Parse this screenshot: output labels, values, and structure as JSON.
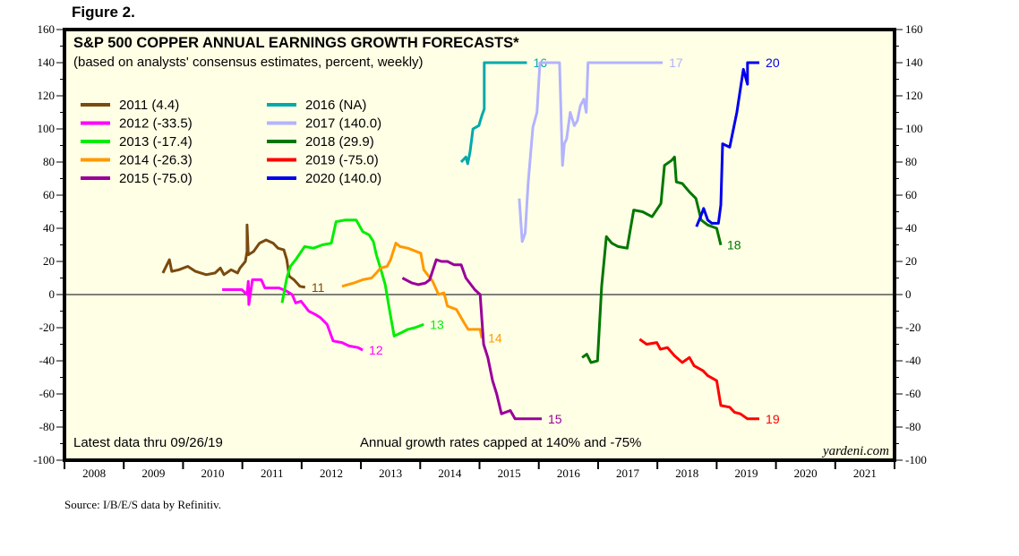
{
  "figure_label": "Figure 2.",
  "source": "Source: I/B/E/S data by Refinitiv.",
  "chart_data": {
    "type": "line",
    "title": "S&P 500 COPPER ANNUAL EARNINGS GROWTH FORECASTS*",
    "subtitle": "(based on analysts' consensus estimates, percent, weekly)",
    "xlabel": "",
    "ylabel": "",
    "xlim": [
      2008,
      2022
    ],
    "ylim": [
      -100,
      160
    ],
    "x_tick_labels": [
      "2008",
      "2009",
      "2010",
      "2011",
      "2012",
      "2013",
      "2014",
      "2015",
      "2016",
      "2017",
      "2018",
      "2019",
      "2020",
      "2021"
    ],
    "y_ticks": [
      -100,
      -80,
      -60,
      -40,
      -20,
      0,
      20,
      40,
      60,
      80,
      100,
      120,
      140,
      160
    ],
    "y_tick_labels": [
      "-100",
      "-80",
      "-60",
      "-40",
      "-20",
      "0",
      "20",
      "40",
      "60",
      "80",
      "100",
      "120",
      "140",
      "160"
    ],
    "zero_line": true,
    "grid": false,
    "legend_position": "top-left",
    "annotations": {
      "latest": "Latest data thru 09/26/19",
      "cap_note": "Annual growth rates capped at 140% and -75%",
      "brand": "yardeni.com"
    },
    "series": [
      {
        "name": "2011 (4.4)",
        "end_label": "11",
        "color": "#7b4a0e",
        "points": [
          [
            2009.66,
            13
          ],
          [
            2009.77,
            21
          ],
          [
            2009.81,
            14
          ],
          [
            2009.93,
            15
          ],
          [
            2010.08,
            17
          ],
          [
            2010.21,
            14
          ],
          [
            2010.39,
            12
          ],
          [
            2010.54,
            13
          ],
          [
            2010.63,
            16
          ],
          [
            2010.69,
            12
          ],
          [
            2010.81,
            15
          ],
          [
            2010.92,
            13
          ],
          [
            2010.96,
            16
          ],
          [
            2011.05,
            20
          ],
          [
            2011.08,
            26
          ],
          [
            2011.08,
            42
          ],
          [
            2011.1,
            24
          ],
          [
            2011.19,
            26
          ],
          [
            2011.29,
            31
          ],
          [
            2011.4,
            33
          ],
          [
            2011.52,
            31
          ],
          [
            2011.6,
            28
          ],
          [
            2011.7,
            27
          ],
          [
            2011.75,
            21
          ],
          [
            2011.79,
            11
          ],
          [
            2011.87,
            9
          ],
          [
            2011.97,
            5
          ],
          [
            2012.06,
            4.4
          ]
        ]
      },
      {
        "name": "2012 (-33.5)",
        "end_label": "12",
        "color": "#ff00ff",
        "points": [
          [
            2010.66,
            3
          ],
          [
            2010.99,
            3
          ],
          [
            2011.08,
            0
          ],
          [
            2011.1,
            8
          ],
          [
            2011.11,
            -6
          ],
          [
            2011.17,
            9
          ],
          [
            2011.32,
            9
          ],
          [
            2011.38,
            4
          ],
          [
            2011.52,
            4
          ],
          [
            2011.62,
            4
          ],
          [
            2011.75,
            2
          ],
          [
            2011.84,
            0
          ],
          [
            2011.9,
            -5
          ],
          [
            2011.99,
            -4
          ],
          [
            2012.12,
            -10
          ],
          [
            2012.23,
            -12
          ],
          [
            2012.32,
            -14
          ],
          [
            2012.43,
            -18
          ],
          [
            2012.53,
            -28
          ],
          [
            2012.68,
            -29
          ],
          [
            2012.8,
            -31
          ],
          [
            2012.95,
            -32
          ],
          [
            2013.03,
            -33.5
          ]
        ]
      },
      {
        "name": "2013 (-17.4)",
        "end_label": "13",
        "color": "#00ee00",
        "points": [
          [
            2011.67,
            -5
          ],
          [
            2011.75,
            10
          ],
          [
            2011.81,
            17
          ],
          [
            2011.9,
            21
          ],
          [
            2012.05,
            29
          ],
          [
            2012.2,
            28
          ],
          [
            2012.35,
            30
          ],
          [
            2012.5,
            31
          ],
          [
            2012.58,
            44
          ],
          [
            2012.73,
            45
          ],
          [
            2012.92,
            45
          ],
          [
            2013.03,
            38
          ],
          [
            2013.14,
            36
          ],
          [
            2013.21,
            32
          ],
          [
            2013.26,
            24
          ],
          [
            2013.33,
            16
          ],
          [
            2013.41,
            6
          ],
          [
            2013.48,
            -9
          ],
          [
            2013.56,
            -25
          ],
          [
            2013.68,
            -23
          ],
          [
            2013.79,
            -21
          ],
          [
            2013.91,
            -20
          ],
          [
            2014.06,
            -18
          ]
        ]
      },
      {
        "name": "2014 (-26.3)",
        "end_label": "14",
        "color": "#ff9900",
        "points": [
          [
            2012.68,
            5
          ],
          [
            2012.88,
            7
          ],
          [
            2013.03,
            9
          ],
          [
            2013.18,
            10
          ],
          [
            2013.26,
            13
          ],
          [
            2013.33,
            16
          ],
          [
            2013.44,
            17
          ],
          [
            2013.5,
            21
          ],
          [
            2013.59,
            31
          ],
          [
            2013.66,
            29
          ],
          [
            2013.79,
            28
          ],
          [
            2014.01,
            25
          ],
          [
            2014.06,
            15
          ],
          [
            2014.21,
            8
          ],
          [
            2014.31,
            0
          ],
          [
            2014.4,
            1
          ],
          [
            2014.46,
            -7
          ],
          [
            2014.61,
            -9
          ],
          [
            2014.74,
            -17
          ],
          [
            2014.81,
            -21
          ],
          [
            2015.01,
            -21
          ],
          [
            2015.04,
            -26.3
          ]
        ]
      },
      {
        "name": "2015 (-75.0)",
        "end_label": "15",
        "color": "#990099",
        "points": [
          [
            2013.7,
            10
          ],
          [
            2013.86,
            7
          ],
          [
            2013.97,
            6
          ],
          [
            2014.09,
            7
          ],
          [
            2014.16,
            9
          ],
          [
            2014.27,
            21
          ],
          [
            2014.36,
            20
          ],
          [
            2014.46,
            20
          ],
          [
            2014.57,
            18
          ],
          [
            2014.69,
            18
          ],
          [
            2014.77,
            10
          ],
          [
            2014.92,
            3
          ],
          [
            2015.01,
            0
          ],
          [
            2015.07,
            -30
          ],
          [
            2015.14,
            -38
          ],
          [
            2015.22,
            -52
          ],
          [
            2015.29,
            -60
          ],
          [
            2015.37,
            -72
          ],
          [
            2015.52,
            -70
          ],
          [
            2015.6,
            -75
          ],
          [
            2016.05,
            -75
          ]
        ]
      },
      {
        "name": "2016 (NA)",
        "end_label": "16",
        "color": "#00aaaa",
        "points": [
          [
            2014.69,
            80
          ],
          [
            2014.77,
            83
          ],
          [
            2014.8,
            79
          ],
          [
            2014.84,
            86
          ],
          [
            2014.89,
            100
          ],
          [
            2014.99,
            102
          ],
          [
            2015.04,
            108
          ],
          [
            2015.08,
            112
          ],
          [
            2015.08,
            140
          ],
          [
            2015.8,
            140
          ]
        ]
      },
      {
        "name": "2017 (140.0)",
        "end_label": "17",
        "color": "#b3b3ff",
        "points": [
          [
            2015.67,
            58
          ],
          [
            2015.72,
            32
          ],
          [
            2015.77,
            37
          ],
          [
            2015.82,
            67
          ],
          [
            2015.9,
            101
          ],
          [
            2015.97,
            110
          ],
          [
            2016.02,
            140
          ],
          [
            2016.35,
            140
          ],
          [
            2016.4,
            78
          ],
          [
            2016.43,
            91
          ],
          [
            2016.47,
            94
          ],
          [
            2016.53,
            110
          ],
          [
            2016.6,
            102
          ],
          [
            2016.65,
            105
          ],
          [
            2016.7,
            114
          ],
          [
            2016.76,
            118
          ],
          [
            2016.8,
            110
          ],
          [
            2016.83,
            140
          ],
          [
            2018.09,
            140
          ]
        ]
      },
      {
        "name": "2018 (29.9)",
        "end_label": "18",
        "color": "#007700",
        "points": [
          [
            2016.73,
            -38
          ],
          [
            2016.81,
            -36
          ],
          [
            2016.88,
            -41
          ],
          [
            2016.99,
            -40
          ],
          [
            2017.06,
            5
          ],
          [
            2017.14,
            35
          ],
          [
            2017.23,
            31
          ],
          [
            2017.34,
            29
          ],
          [
            2017.49,
            28
          ],
          [
            2017.6,
            51
          ],
          [
            2017.75,
            50
          ],
          [
            2017.91,
            47
          ],
          [
            2018.06,
            55
          ],
          [
            2018.12,
            78
          ],
          [
            2018.24,
            81
          ],
          [
            2018.29,
            83
          ],
          [
            2018.32,
            68
          ],
          [
            2018.42,
            67
          ],
          [
            2018.54,
            62
          ],
          [
            2018.65,
            58
          ],
          [
            2018.74,
            45
          ],
          [
            2018.85,
            42
          ],
          [
            2019.0,
            40
          ],
          [
            2019.07,
            29.9
          ]
        ]
      },
      {
        "name": "2019 (-75.0)",
        "end_label": "19",
        "color": "#ff0000",
        "points": [
          [
            2017.7,
            -27
          ],
          [
            2017.82,
            -30
          ],
          [
            2017.99,
            -29
          ],
          [
            2018.05,
            -33
          ],
          [
            2018.17,
            -32
          ],
          [
            2018.29,
            -37
          ],
          [
            2018.42,
            -41
          ],
          [
            2018.54,
            -38
          ],
          [
            2018.62,
            -43
          ],
          [
            2018.77,
            -46
          ],
          [
            2018.85,
            -49
          ],
          [
            2019.0,
            -52
          ],
          [
            2019.07,
            -67
          ],
          [
            2019.22,
            -68
          ],
          [
            2019.3,
            -71
          ],
          [
            2019.4,
            -72
          ],
          [
            2019.52,
            -75
          ],
          [
            2019.72,
            -75
          ]
        ]
      },
      {
        "name": "2020 (140.0)",
        "end_label": "20",
        "color": "#0000ee",
        "points": [
          [
            2018.66,
            41
          ],
          [
            2018.74,
            48
          ],
          [
            2018.78,
            52
          ],
          [
            2018.85,
            45
          ],
          [
            2018.92,
            43
          ],
          [
            2019.03,
            43
          ],
          [
            2019.07,
            54
          ],
          [
            2019.1,
            91
          ],
          [
            2019.22,
            89
          ],
          [
            2019.34,
            110
          ],
          [
            2019.4,
            124
          ],
          [
            2019.45,
            136
          ],
          [
            2019.52,
            127
          ],
          [
            2019.52,
            140
          ],
          [
            2019.72,
            140
          ]
        ]
      }
    ]
  }
}
